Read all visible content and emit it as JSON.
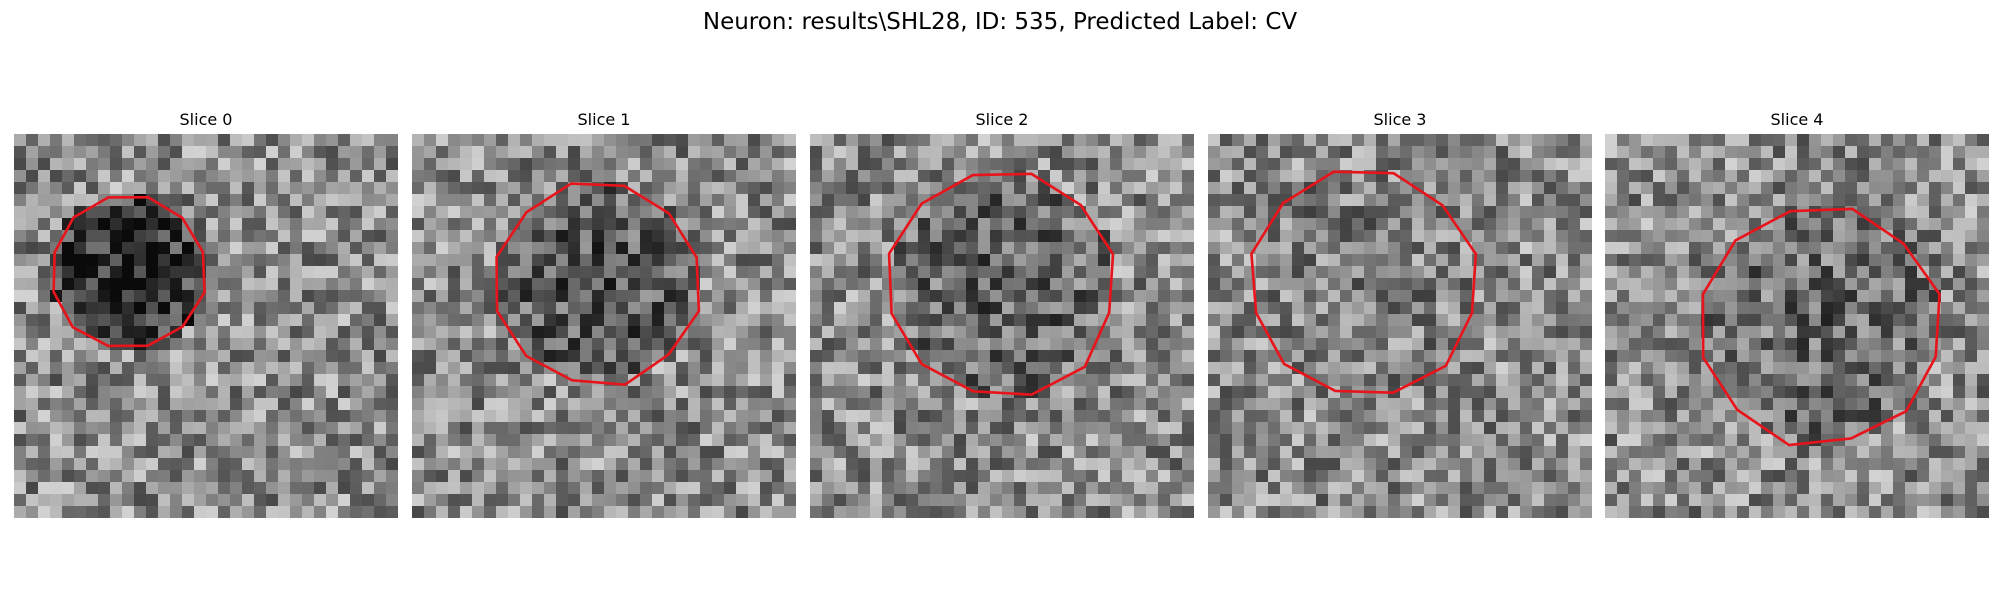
{
  "figure": {
    "title": "Neuron: results\\SHL28, ID: 535, Predicted Label: CV",
    "panels": [
      {
        "title": "Slice 0"
      },
      {
        "title": "Slice 1"
      },
      {
        "title": "Slice 2"
      },
      {
        "title": "Slice 3"
      },
      {
        "title": "Slice 4"
      }
    ]
  },
  "colors": {
    "contour": "#e8141c",
    "image_colormap": "gray"
  }
}
